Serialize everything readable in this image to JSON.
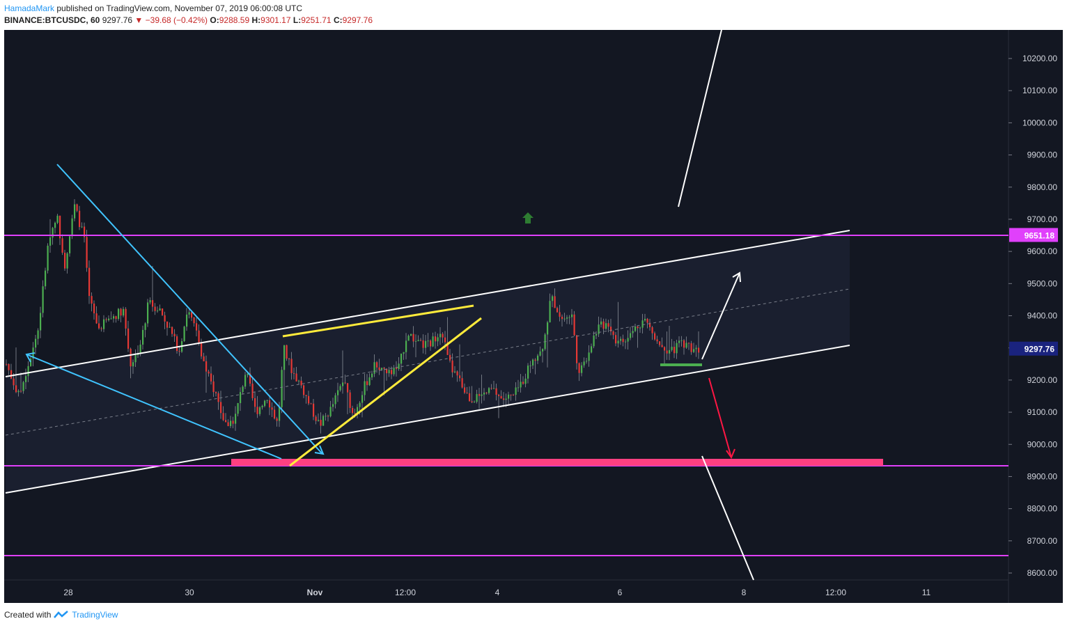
{
  "header": {
    "author": "HamadaMark",
    "published": "published on TradingView.com, November 07, 2019 06:00:08 UTC",
    "symbol": "BINANCE:BTCUSDC, 60",
    "last": "9297.76",
    "change": "−39.68 (−0.42%)",
    "open_label": "O:",
    "open": "9288.59",
    "high_label": "H:",
    "high": "9301.17",
    "low_label": "L:",
    "low": "9251.71",
    "close_label": "C:",
    "close": "9297.76"
  },
  "footer": {
    "created": "Created with",
    "brand": "TradingView"
  },
  "colors": {
    "background": "#131722",
    "axis_panel": "#131722",
    "up": "#26a69a",
    "up_bright": "#4caf50",
    "down": "#ef5350",
    "magenta": "#e040fb",
    "cyan": "#40c4ff",
    "yellow": "#ffeb3b",
    "support_zone": "#ff4081",
    "price_label": "#1a237e"
  },
  "chart_data": {
    "type": "candlestick",
    "ylim": [
      8570,
      10330
    ],
    "y_ticks": [
      "10200.00",
      "10100.00",
      "10000.00",
      "9900.00",
      "9800.00",
      "9700.00",
      "9600.00",
      "9500.00",
      "9400.00",
      "9300.00",
      "9200.00",
      "9100.00",
      "9000.00",
      "8900.00",
      "8800.00",
      "8700.00",
      "8600.00"
    ],
    "x_ticks": [
      "28",
      "30",
      "Nov",
      "12:00",
      "4",
      "6",
      "8",
      "12:00",
      "11"
    ],
    "x_tick_bold": [
      "Nov"
    ],
    "price_labels": [
      {
        "value": 9651.18,
        "text": "9651.18",
        "kind": "level"
      },
      {
        "value": 9297.76,
        "text": "9297.76",
        "kind": "last"
      }
    ],
    "horizontal_levels": [
      9651.18,
      8935,
      8655
    ],
    "support_zone": [
      8935,
      8957
    ],
    "channel": {
      "upper": [
        [
          9205,
          9651
        ]
      ],
      "lower": [
        [
          8850,
          9305
        ]
      ],
      "mid": [
        [
          9030,
          9480
        ]
      ]
    },
    "annotations": {
      "arrow_up_marker": 9700,
      "bull_target_line": "up",
      "bear_target_line": "down"
    },
    "candles": "hourly OHLC from Oct 27 to Nov 07 2019, read approximately from the chart"
  }
}
